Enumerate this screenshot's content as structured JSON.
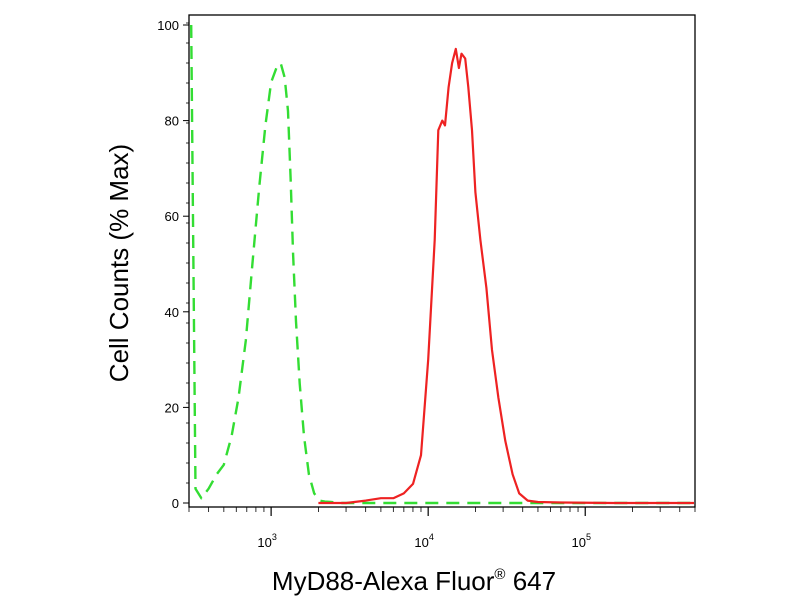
{
  "chart_data": {
    "type": "line",
    "xlabel": "MyD88-Alexa Fluor",
    "xlabel_sup": "®",
    "xlabel_suffix": " 647",
    "ylabel": "Cell Counts (% Max)",
    "x_scale": "log",
    "xlim": [
      300,
      500000
    ],
    "ylim": [
      0,
      100
    ],
    "y_ticks": [
      0,
      20,
      40,
      60,
      80,
      100
    ],
    "x_ticks": [
      {
        "value": 1000,
        "base": "10",
        "exp": "3"
      },
      {
        "value": 10000,
        "base": "10",
        "exp": "4"
      },
      {
        "value": 100000,
        "base": "10",
        "exp": "5"
      }
    ],
    "grid": false,
    "series": [
      {
        "color": "#33dd33",
        "dash": true,
        "x": [
          310,
          330,
          360,
          400,
          450,
          500,
          560,
          620,
          690,
          760,
          840,
          920,
          1000,
          1080,
          1150,
          1220,
          1280,
          1330,
          1380,
          1440,
          1520,
          1620,
          1740,
          1880,
          2040,
          2200,
          2400,
          2600,
          2800,
          3200,
          4000,
          6000,
          10000,
          30000,
          100000,
          500000
        ],
        "y": [
          100,
          3,
          1,
          3,
          6,
          8,
          14,
          22,
          34,
          50,
          66,
          79,
          88,
          91,
          92,
          89,
          82,
          68,
          52,
          38,
          25,
          14,
          6,
          2,
          0.5,
          0.3,
          0.2,
          0.1,
          0,
          0,
          0,
          0,
          0,
          0,
          0,
          0
        ]
      },
      {
        "color": "#ee2222",
        "dash": false,
        "x": [
          2000,
          3000,
          4000,
          5000,
          6000,
          7000,
          8000,
          9000,
          10000,
          11000,
          11600,
          12300,
          12800,
          13500,
          14200,
          15000,
          15700,
          16300,
          17200,
          18000,
          19000,
          20000,
          21500,
          23500,
          25500,
          28000,
          31000,
          34500,
          38000,
          43000,
          50000,
          70000,
          150000,
          500000
        ],
        "y": [
          0,
          0,
          0.5,
          1,
          1,
          2,
          4,
          10,
          30,
          55,
          78,
          80,
          79,
          87,
          92,
          95,
          91,
          94,
          93,
          87,
          78,
          65,
          55,
          45,
          32,
          22,
          13,
          6,
          2,
          0.5,
          0.2,
          0.1,
          0,
          0
        ]
      }
    ]
  }
}
